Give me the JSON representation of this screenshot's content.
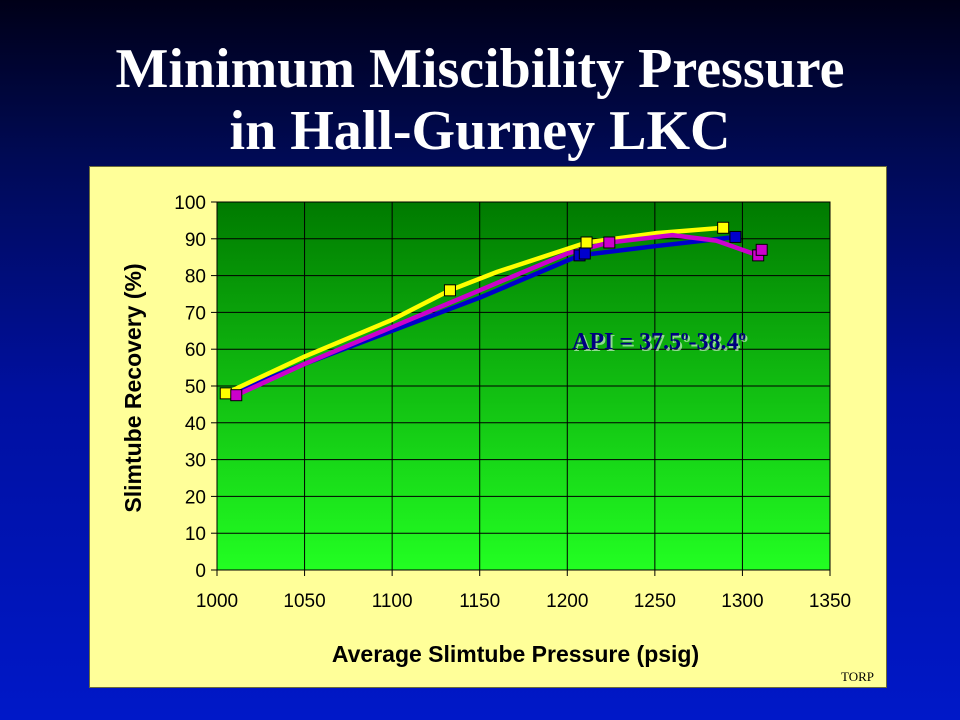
{
  "slide": {
    "title_line1": "Minimum Miscibility Pressure",
    "title_line2": "in Hall-Gurney LKC",
    "footer": "TORP"
  },
  "colors": {
    "background": "#0010a0",
    "panel": "#ffff99",
    "plot_top": "#007a00",
    "plot_bottom": "#22ff22",
    "series_yellow": "#ffff00",
    "series_blue": "#0000cc",
    "series_magenta": "#cc00cc"
  },
  "chart_data": {
    "type": "line",
    "title": "",
    "xlabel": "Average Slimtube Pressure (psig)",
    "ylabel": "Slimtube Recovery (%)",
    "xlim": [
      1000,
      1350
    ],
    "ylim": [
      0,
      100
    ],
    "xticks": [
      1000,
      1050,
      1100,
      1150,
      1200,
      1250,
      1300,
      1350
    ],
    "yticks": [
      0,
      10,
      20,
      30,
      40,
      50,
      60,
      70,
      80,
      90,
      100
    ],
    "grid": true,
    "legend": "none",
    "annotation": {
      "text": "API = 37.5",
      "sup1": "o",
      "mid": "-38.4",
      "sup2": "o"
    },
    "series": [
      {
        "color": "#0000cc",
        "points": [
          [
            1207,
            85.5
          ],
          [
            1210,
            86
          ],
          [
            1296,
            90.5
          ]
        ],
        "curve": [
          [
            1008,
            48
          ],
          [
            1050,
            56
          ],
          [
            1100,
            65
          ],
          [
            1150,
            74
          ],
          [
            1207,
            85.5
          ],
          [
            1250,
            88
          ],
          [
            1296,
            90.5
          ]
        ]
      },
      {
        "color": "#ffff00",
        "points": [
          [
            1005,
            48
          ],
          [
            1133,
            76
          ],
          [
            1211,
            89
          ],
          [
            1289,
            93
          ]
        ],
        "curve": [
          [
            1005,
            48
          ],
          [
            1050,
            58
          ],
          [
            1100,
            68
          ],
          [
            1133,
            76
          ],
          [
            1160,
            81
          ],
          [
            1211,
            89
          ],
          [
            1250,
            91.5
          ],
          [
            1289,
            93
          ]
        ]
      },
      {
        "color": "#cc00cc",
        "points": [
          [
            1011,
            47.5
          ],
          [
            1224,
            89
          ],
          [
            1309,
            85.5
          ],
          [
            1311,
            87
          ]
        ],
        "curve": [
          [
            1011,
            47.5
          ],
          [
            1050,
            56
          ],
          [
            1100,
            66
          ],
          [
            1150,
            76
          ],
          [
            1200,
            86
          ],
          [
            1224,
            89
          ],
          [
            1260,
            91
          ],
          [
            1285,
            89.5
          ],
          [
            1309,
            85.5
          ]
        ]
      }
    ]
  }
}
